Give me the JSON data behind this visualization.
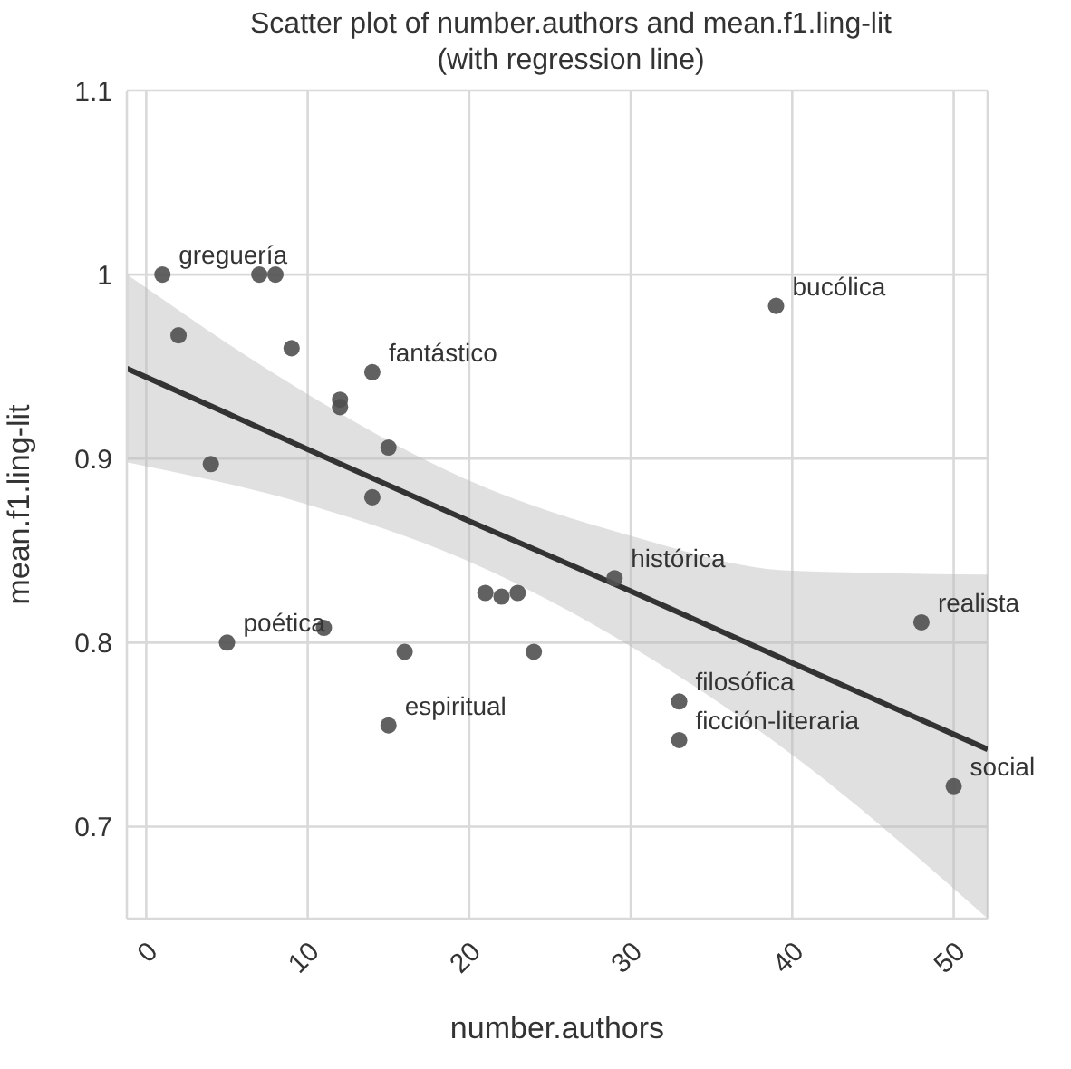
{
  "chart_data": {
    "type": "scatter",
    "title": "Scatter plot of number.authors and mean.f1.ling-lit\n(with regression line)",
    "xlabel": "number.authors",
    "ylabel": "mean.f1.ling-lit",
    "xlim": [
      -1.2,
      52.1
    ],
    "xticks": [
      0,
      10,
      20,
      30,
      40,
      50
    ],
    "ylim": [
      0.65,
      1.1
    ],
    "yticks": [
      0.7,
      0.8,
      0.9,
      1.0,
      1.1
    ],
    "grid": true,
    "series": [
      {
        "marker": "circle",
        "color": "#505050",
        "x": [
          1,
          2,
          4,
          5,
          7,
          8,
          9,
          12,
          12,
          14,
          15,
          14,
          11,
          16,
          15,
          21,
          22,
          23,
          24,
          29,
          39,
          33,
          33,
          48,
          50
        ],
        "values": [
          1.0,
          0.967,
          0.897,
          0.8,
          1.0,
          1.0,
          0.96,
          0.932,
          0.928,
          0.947,
          0.906,
          0.879,
          0.808,
          0.795,
          0.755,
          0.827,
          0.825,
          0.827,
          0.795,
          0.835,
          0.983,
          0.768,
          0.747,
          0.811,
          0.722
        ]
      },
      {
        "type": "line",
        "marker": "none",
        "color": "#333333",
        "x": [
          -1.2,
          10,
          20,
          30,
          40,
          52.1
        ],
        "values": [
          0.949,
          0.905,
          0.866,
          0.828,
          0.789,
          0.742
        ],
        "lower": [
          0.898,
          0.875,
          0.844,
          0.798,
          0.739,
          0.65
        ],
        "upper": [
          1.0,
          0.935,
          0.888,
          0.858,
          0.839,
          0.837
        ]
      }
    ],
    "annotations": [
      {
        "text": "greguería",
        "x": 1,
        "y": 1.0
      },
      {
        "text": "fantástico",
        "x": 14,
        "y": 0.947
      },
      {
        "text": "poética",
        "x": 5,
        "y": 0.8
      },
      {
        "text": "espiritual",
        "x": 15,
        "y": 0.755
      },
      {
        "text": "histórica",
        "x": 29,
        "y": 0.835
      },
      {
        "text": "bucólica",
        "x": 39,
        "y": 0.983
      },
      {
        "text": "realista",
        "x": 48,
        "y": 0.811
      },
      {
        "text": "filosófica",
        "x": 33,
        "y": 0.768
      },
      {
        "text": "ficción-literaria",
        "x": 33,
        "y": 0.747
      },
      {
        "text": "social",
        "x": 50,
        "y": 0.722
      }
    ]
  }
}
